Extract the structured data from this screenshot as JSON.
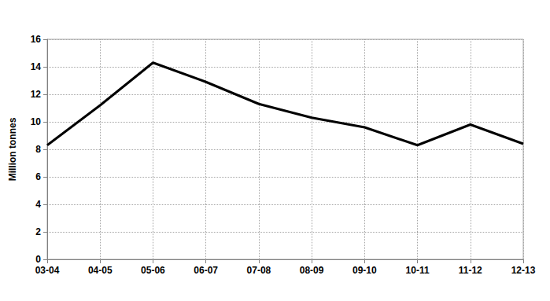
{
  "chart_data": {
    "type": "line",
    "y_label": "Million tonnes",
    "categories": [
      "03-04",
      "04-05",
      "05-06",
      "06-07",
      "07-08",
      "08-09",
      "09-10",
      "10-11",
      "11-12",
      "12-13"
    ],
    "values": [
      8.3,
      11.2,
      14.3,
      12.9,
      11.3,
      10.3,
      9.6,
      8.3,
      9.8,
      8.4
    ],
    "color": "#000000",
    "marker": "none",
    "ylim": [
      0,
      16
    ],
    "yticks": [
      0,
      2,
      4,
      6,
      8,
      10,
      12,
      14,
      16
    ],
    "grid": true
  }
}
